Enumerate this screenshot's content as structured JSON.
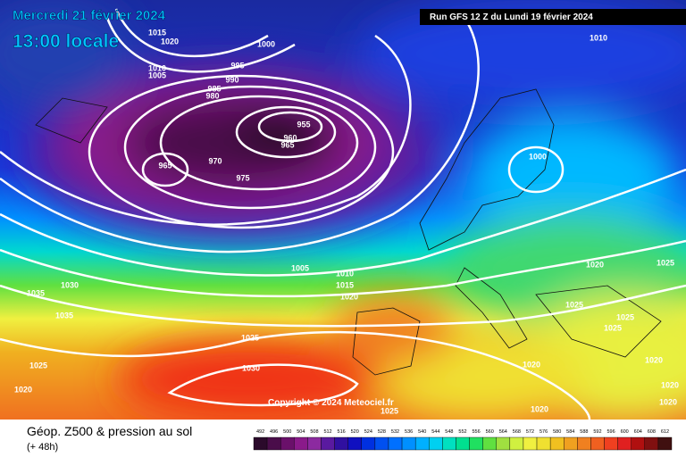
{
  "header": {
    "date": "Mercredi 21 février 2024",
    "time": "13:00 locale",
    "run": "Run GFS 12 Z du Lundi 19 février 2024"
  },
  "copyright": "Copyright © 2024 Meteociel.fr",
  "footer": {
    "title": "Géop. Z500 & pression au sol",
    "lead": "(+ 48h)"
  },
  "legend": {
    "levels": [
      492,
      496,
      500,
      504,
      508,
      512,
      516,
      520,
      524,
      528,
      532,
      536,
      540,
      544,
      548,
      552,
      556,
      560,
      564,
      568,
      572,
      576,
      580,
      584,
      588,
      592,
      596,
      600,
      604,
      608,
      612
    ],
    "colors": [
      "#2b0a2b",
      "#4a0d4a",
      "#6a106a",
      "#8a1a8a",
      "#8c2aa0",
      "#5a1aa0",
      "#3010a0",
      "#1010c0",
      "#0030e0",
      "#0050f0",
      "#0070ff",
      "#0090ff",
      "#00b0ff",
      "#00d0f0",
      "#00e0c0",
      "#00e090",
      "#20e060",
      "#60e040",
      "#a0e040",
      "#d0f040",
      "#f0f040",
      "#f0e030",
      "#f0c020",
      "#f0a020",
      "#f08020",
      "#f06020",
      "#f04020",
      "#e02020",
      "#b01010",
      "#801010",
      "#401010"
    ]
  },
  "isobar_labels": [
    1015,
    1020,
    1000,
    995,
    990,
    985,
    980,
    1010,
    1005,
    955,
    960,
    965,
    965,
    970,
    975,
    1010,
    1000,
    1005,
    1010,
    1015,
    1020,
    1030,
    1035,
    1035,
    1025,
    1030,
    1025,
    1020,
    1020,
    1025,
    1025,
    1025,
    1025,
    1020,
    1020,
    1020,
    1020,
    1020,
    1025
  ]
}
